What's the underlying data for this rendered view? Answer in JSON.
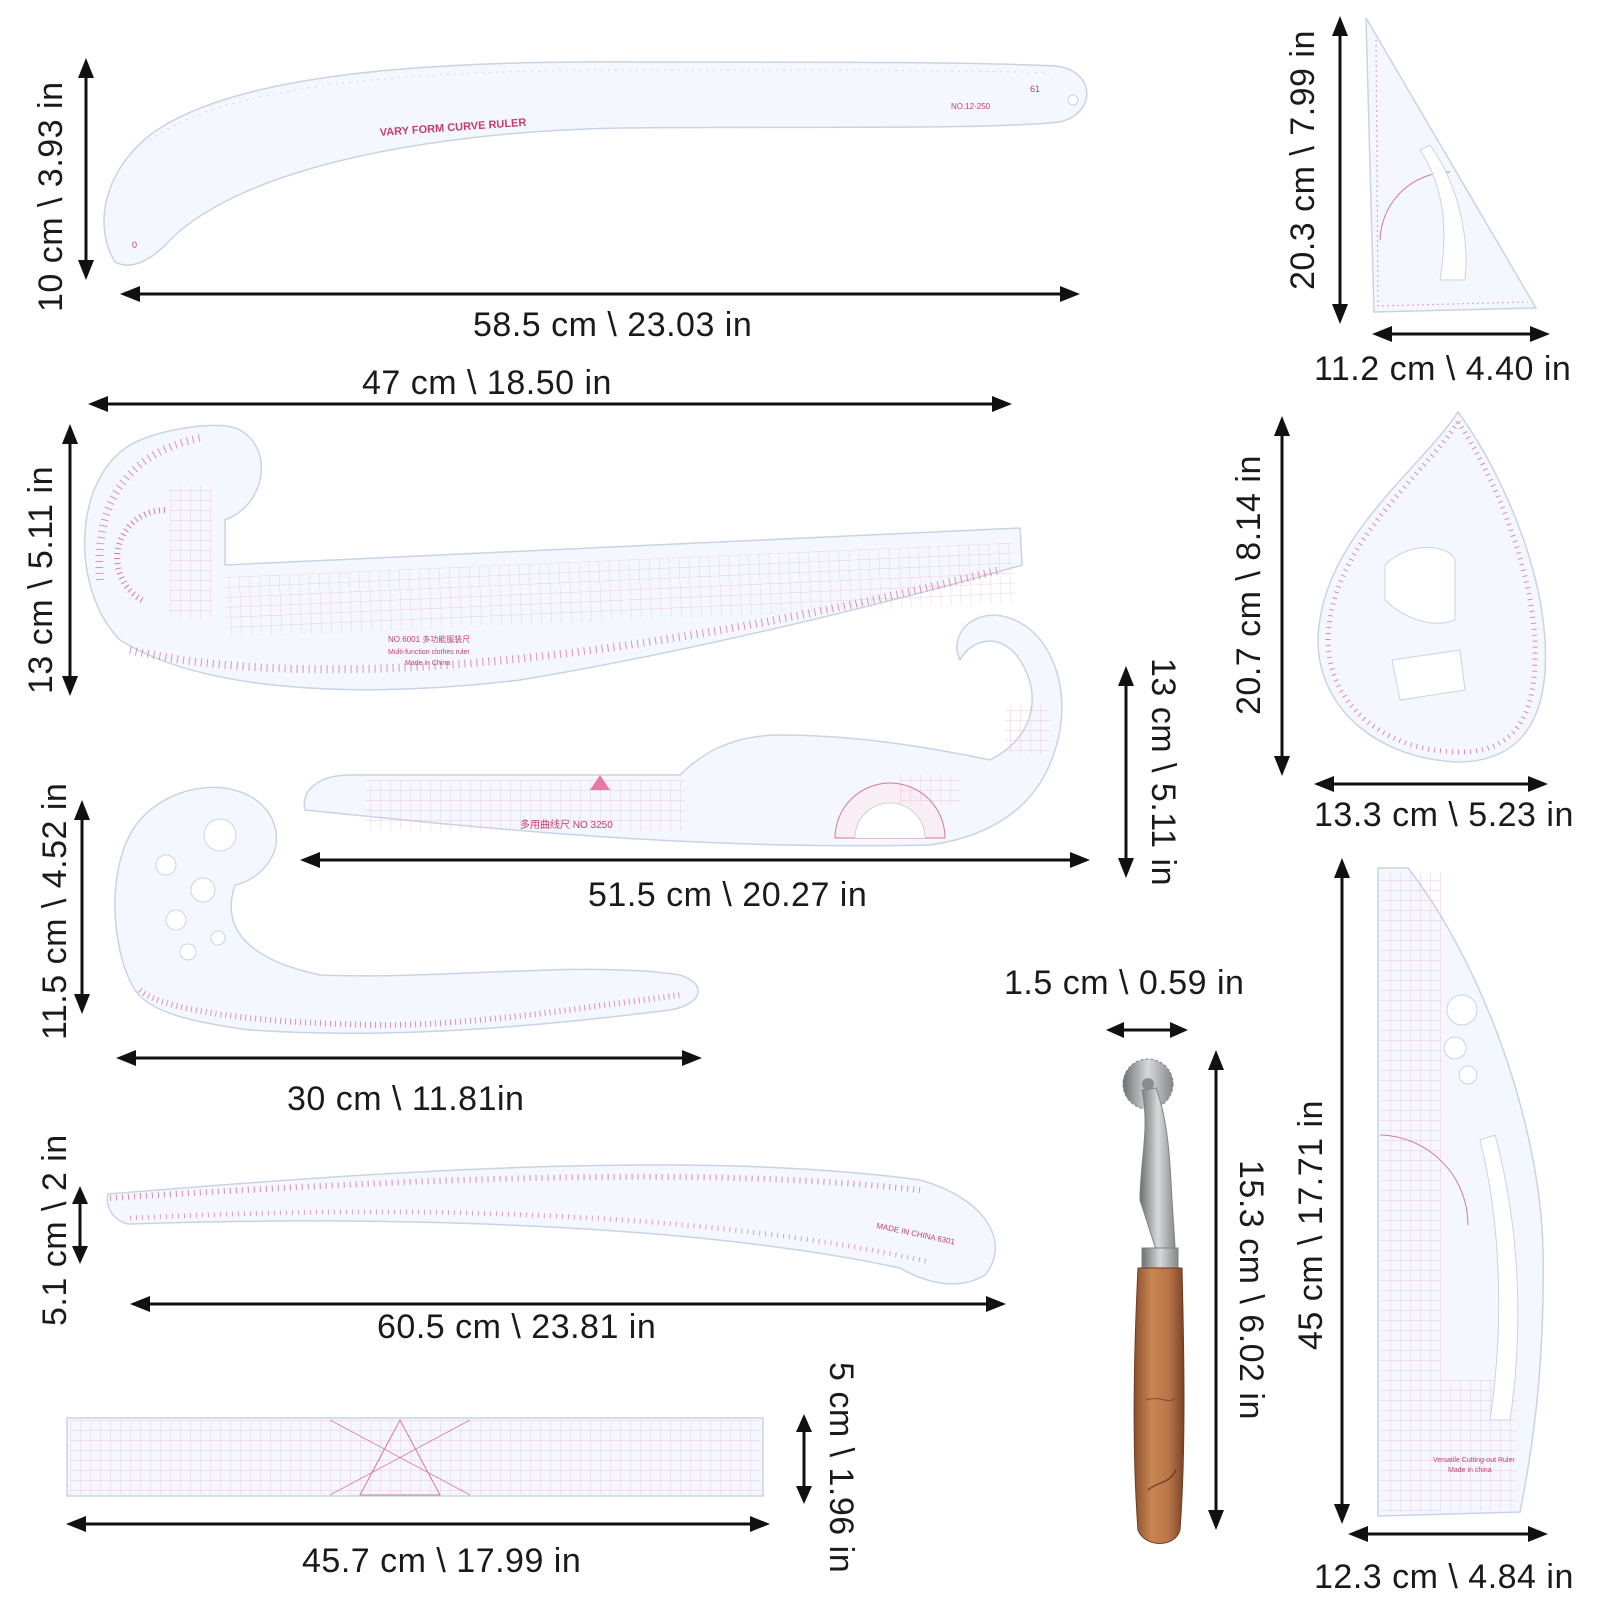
{
  "colors": {
    "ruler_fill": "#f4f8fe",
    "ruler_marking": "#c63c72",
    "text": "#1a1a1a",
    "handle_wood": "#b7744a",
    "metal": "#a7a9ac"
  },
  "rulers": {
    "vary_form": {
      "title": "VARY FORM CURVE RULER",
      "model": "NO.12-250",
      "width_label": "58.5 cm \\ 23.03 in",
      "height_label": "10 cm \\ 3.93 in"
    },
    "multi_function": {
      "model": "NO.6001 多功能服装尺",
      "subtitle": "Multi-function clothes ruler",
      "made_in": "Made in China",
      "width_label": "47 cm \\ 18.50 in",
      "height_label": "13 cm \\ 5.11 in"
    },
    "hook_curve": {
      "model": "多用曲线尺 NO 3250",
      "width_label": "51.5 cm \\ 20.27 in",
      "height_label": "13 cm \\ 5.11 in"
    },
    "french_curve": {
      "width_label": "30 cm \\ 11.81in",
      "height_label": "11.5 cm \\ 4.52 in"
    },
    "hip_curve": {
      "made_in": "MADE IN CHINA 6301",
      "width_label": "60.5 cm \\ 23.81 in",
      "height_label": "5.1 cm \\ 2 in"
    },
    "straight": {
      "width_label": "45.7 cm \\ 17.99 in",
      "height_label": "5 cm \\ 1.96 in"
    },
    "triangle": {
      "width_label": "11.2 cm \\ 4.40 in",
      "height_label": "20.3 cm \\ 7.99 in"
    },
    "teardrop": {
      "width_label": "13.3 cm \\ 5.23 in",
      "height_label": "20.7 cm \\ 8.14 in"
    },
    "versatile": {
      "name": "Versatile Cutting-out Ruler",
      "made_in": "Made in china",
      "width_label": "12.3 cm \\ 4.84 in",
      "height_label": "45 cm \\ 17.71 in"
    }
  },
  "tracing_wheel": {
    "blade_label": "1.5 cm \\ 0.59 in",
    "length_label": "15.3 cm \\ 6.02 in"
  },
  "ruler_numbers": {
    "vary_form_start": 0,
    "vary_form_end": 61
  }
}
